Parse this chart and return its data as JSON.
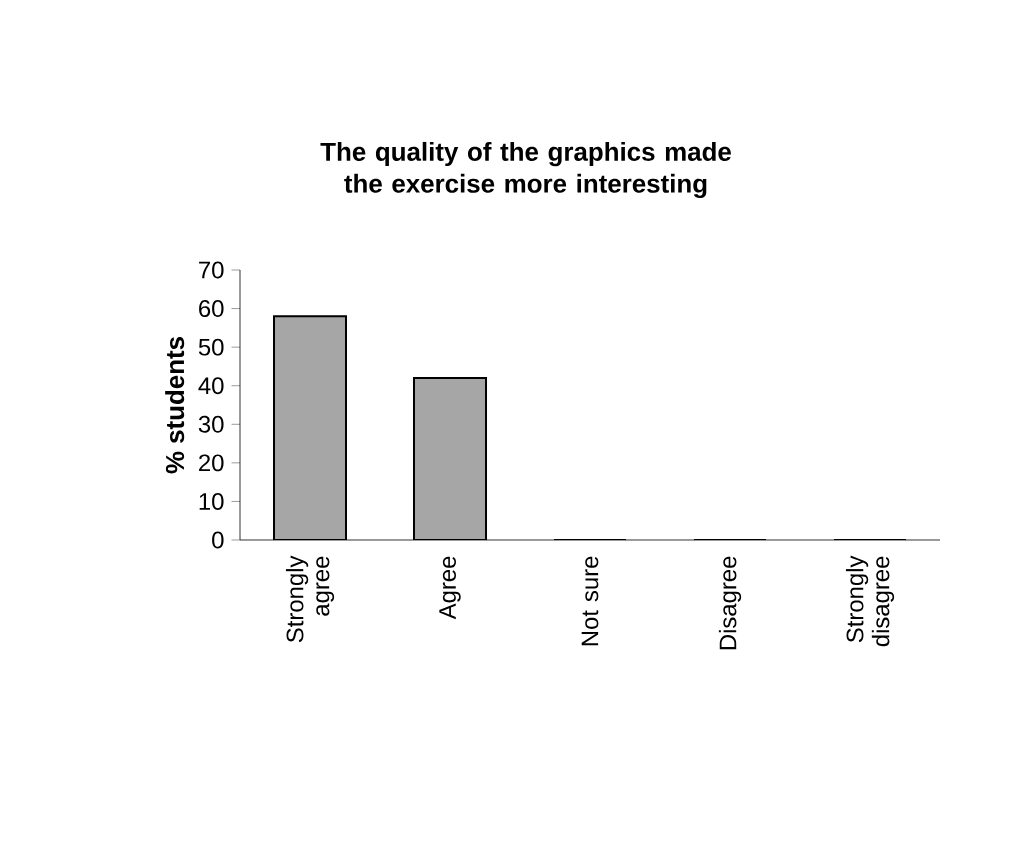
{
  "chart_data": {
    "type": "bar",
    "title": "The quality of the graphics made the exercise more interesting",
    "ylabel": "% students",
    "categories": [
      "Strongly agree",
      "Agree",
      "Not sure",
      "Disagree",
      "Strongly disagree"
    ],
    "values": [
      58,
      42,
      0,
      0,
      0
    ],
    "color": "#a6a6a6",
    "ylim": [
      0,
      70
    ],
    "yticks": [
      0,
      10,
      20,
      30,
      40,
      50,
      60,
      70
    ]
  }
}
